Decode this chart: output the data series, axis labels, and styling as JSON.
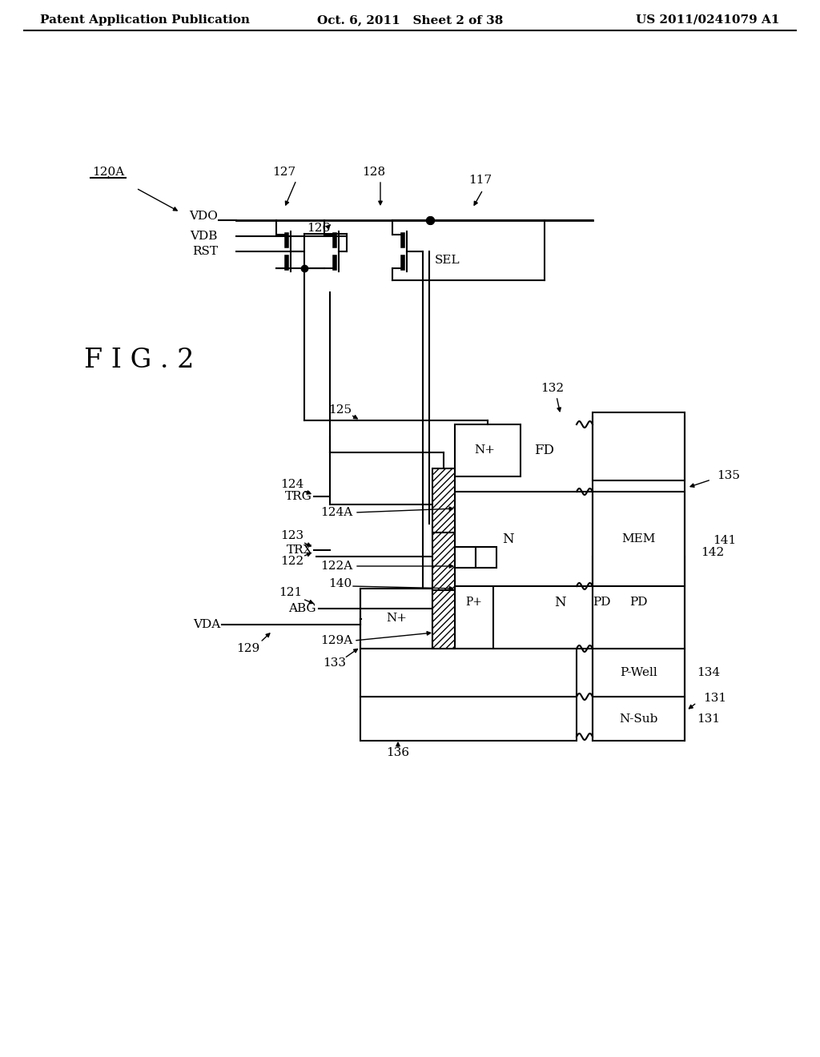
{
  "header_left": "Patent Application Publication",
  "header_mid": "Oct. 6, 2011   Sheet 2 of 38",
  "header_right": "US 2011/0241079 A1",
  "fig_label": "F I G . 2",
  "bg_color": "#ffffff"
}
